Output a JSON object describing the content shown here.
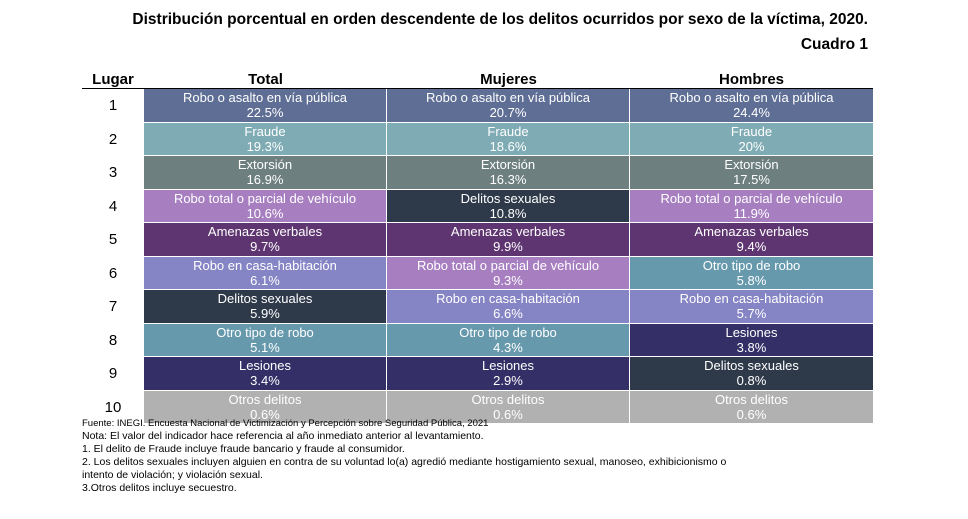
{
  "title": "Distribución porcentual en orden descendente de los delitos ocurridos por sexo de la víctima, 2020.",
  "subtitle": "Cuadro 1",
  "headers": {
    "rank": "Lugar",
    "total": "Total",
    "mujeres": "Mujeres",
    "hombres": "Hombres"
  },
  "colors": {
    "robo_via": "#5e6e94",
    "fraude": "#7fabb4",
    "extorsion": "#6d7f7f",
    "vehiculo": "#a77fc1",
    "sexuales": "#2e3a4a",
    "amenazas": "#5e3570",
    "casa": "#8585c5",
    "otro_robo": "#6799ad",
    "lesiones": "#342f66",
    "otros": "#b1b1b1"
  },
  "rows": [
    {
      "rank": "1",
      "total": {
        "label": "Robo o asalto en vía pública",
        "value": "22.5%",
        "color": "#5e6e94"
      },
      "mujeres": {
        "label": "Robo o asalto en vía pública",
        "value": "20.7%",
        "color": "#5e6e94"
      },
      "hombres": {
        "label": "Robo o asalto en vía pública",
        "value": "24.4%",
        "color": "#5e6e94"
      }
    },
    {
      "rank": "2",
      "total": {
        "label": "Fraude",
        "value": "19.3%",
        "color": "#7fabb4"
      },
      "mujeres": {
        "label": "Fraude",
        "value": "18.6%",
        "color": "#7fabb4"
      },
      "hombres": {
        "label": "Fraude",
        "value": "20%",
        "color": "#7fabb4"
      }
    },
    {
      "rank": "3",
      "total": {
        "label": "Extorsión",
        "value": "16.9%",
        "color": "#6d7f7f"
      },
      "mujeres": {
        "label": "Extorsión",
        "value": "16.3%",
        "color": "#6d7f7f"
      },
      "hombres": {
        "label": "Extorsión",
        "value": "17.5%",
        "color": "#6d7f7f"
      }
    },
    {
      "rank": "4",
      "total": {
        "label": "Robo total o parcial de vehículo",
        "value": "10.6%",
        "color": "#a77fc1"
      },
      "mujeres": {
        "label": "Delitos sexuales",
        "value": "10.8%",
        "color": "#2e3a4a"
      },
      "hombres": {
        "label": "Robo total o parcial de vehículo",
        "value": "11.9%",
        "color": "#a77fc1"
      }
    },
    {
      "rank": "5",
      "total": {
        "label": "Amenazas verbales",
        "value": "9.7%",
        "color": "#5e3570"
      },
      "mujeres": {
        "label": "Amenazas verbales",
        "value": "9.9%",
        "color": "#5e3570"
      },
      "hombres": {
        "label": "Amenazas verbales",
        "value": "9.4%",
        "color": "#5e3570"
      }
    },
    {
      "rank": "6",
      "total": {
        "label": "Robo en casa-habitación",
        "value": "6.1%",
        "color": "#8585c5"
      },
      "mujeres": {
        "label": "Robo total o parcial de vehículo",
        "value": "9.3%",
        "color": "#a77fc1"
      },
      "hombres": {
        "label": "Otro tipo de robo",
        "value": "5.8%",
        "color": "#6799ad"
      }
    },
    {
      "rank": "7",
      "total": {
        "label": "Delitos sexuales",
        "value": "5.9%",
        "color": "#2e3a4a"
      },
      "mujeres": {
        "label": "Robo en casa-habitación",
        "value": "6.6%",
        "color": "#8585c5"
      },
      "hombres": {
        "label": "Robo en casa-habitación",
        "value": "5.7%",
        "color": "#8585c5"
      }
    },
    {
      "rank": "8",
      "total": {
        "label": "Otro tipo de robo",
        "value": "5.1%",
        "color": "#6799ad"
      },
      "mujeres": {
        "label": "Otro tipo de robo",
        "value": "4.3%",
        "color": "#6799ad"
      },
      "hombres": {
        "label": "Lesiones",
        "value": "3.8%",
        "color": "#342f66"
      }
    },
    {
      "rank": "9",
      "total": {
        "label": "Lesiones",
        "value": "3.4%",
        "color": "#342f66"
      },
      "mujeres": {
        "label": "Lesiones",
        "value": "2.9%",
        "color": "#342f66"
      },
      "hombres": {
        "label": "Delitos sexuales",
        "value": "0.8%",
        "color": "#2e3a4a"
      }
    },
    {
      "rank": "10",
      "total": {
        "label": "Otros delitos",
        "value": "0.6%",
        "color": "#b1b1b1"
      },
      "mujeres": {
        "label": "Otros delitos",
        "value": "0.6%",
        "color": "#b1b1b1"
      },
      "hombres": {
        "label": "Otros delitos",
        "value": "0.6%",
        "color": "#b1b1b1"
      }
    }
  ],
  "footnotes": {
    "source": "Fuente: INEGI. Encuesta Nacional de Victimización y Percepción sobre Seguridad Pública, 2021",
    "note": "Nota: El valor del indicador hace referencia al año inmediato anterior al levantamiento.",
    "n1": "1. El delito de Fraude incluye fraude bancario y fraude al consumidor.",
    "n2": "2. Los delitos sexuales incluyen alguien en contra de su voluntad lo(a) agredió mediante hostigamiento sexual, manoseo, exhibicionismo o\nintento de violación; y violación sexual.",
    "n3": "3.Otros delitos incluye secuestro."
  }
}
